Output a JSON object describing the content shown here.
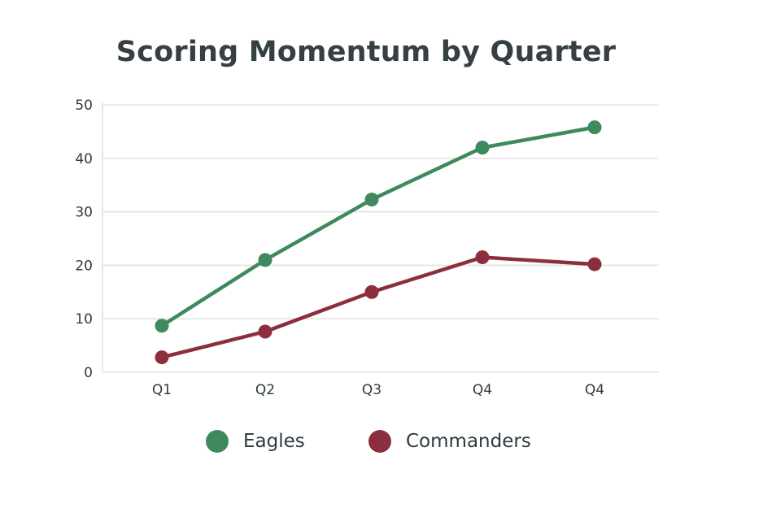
{
  "chart_data": {
    "type": "line",
    "title": "Scoring Momentum by Quarter",
    "xlabel": "",
    "ylabel": "",
    "categories": [
      "Q1",
      "Q2",
      "Q3",
      "Q4",
      "Q4"
    ],
    "ylim": [
      0,
      50
    ],
    "yticks": [
      0,
      10,
      20,
      30,
      40,
      50
    ],
    "grid": true,
    "legend_position": "bottom",
    "series": [
      {
        "name": "Eagles",
        "color": "#3e8a5c",
        "values": [
          8.7,
          21,
          32.3,
          42,
          45.8
        ]
      },
      {
        "name": "Commanders",
        "color": "#8c2f3c",
        "values": [
          2.8,
          7.6,
          15,
          21.5,
          20.2
        ]
      }
    ]
  }
}
